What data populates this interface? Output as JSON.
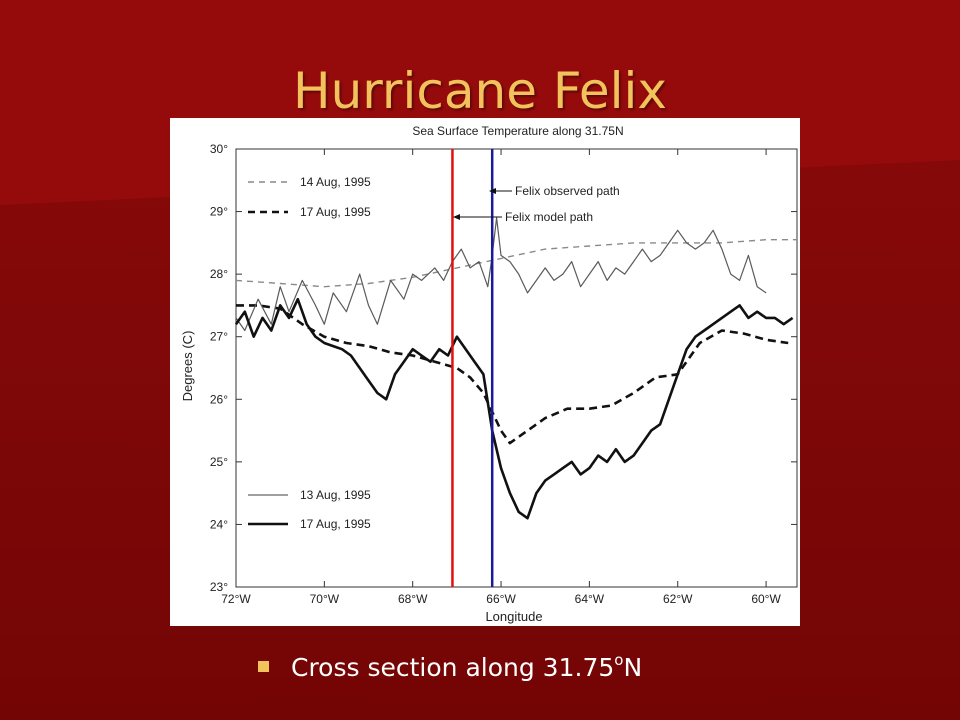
{
  "slide": {
    "title": "Hurricane Felix",
    "bullet": {
      "text_before": "Cross section along 31.75",
      "superscript": "o",
      "text_after": "N"
    }
  },
  "colors": {
    "background": "#830808",
    "title": "#f2c35c",
    "bullet_marker": "#f2c35c",
    "model_path_line": "#e01010",
    "observed_path_line": "#1a1a9a"
  },
  "chart_data": {
    "type": "line",
    "title": "Sea Surface Temperature along 31.75N",
    "xlabel": "Longitude",
    "ylabel": "Degrees (C)",
    "xlim": [
      -72,
      -59.3
    ],
    "ylim": [
      23,
      30
    ],
    "x_ticks": [
      -72,
      -70,
      -68,
      -66,
      -64,
      -62,
      -60
    ],
    "x_tick_labels": [
      "72°W",
      "70°W",
      "68°W",
      "66°W",
      "64°W",
      "62°W",
      "60°W"
    ],
    "y_ticks": [
      23,
      24,
      25,
      26,
      27,
      28,
      29,
      30
    ],
    "y_tick_labels": [
      "23°",
      "24°",
      "25°",
      "26°",
      "27°",
      "28°",
      "29°",
      "30°"
    ],
    "grid": false,
    "legend_top": [
      "14 Aug, 1995",
      "17 Aug, 1995"
    ],
    "legend_bottom": [
      "13 Aug, 1995",
      "17 Aug, 1995"
    ],
    "annotations": [
      "Felix observed path",
      "Felix model path"
    ],
    "vertical_lines": [
      {
        "label": "Felix model path",
        "x": -67.1,
        "color": "#e01010"
      },
      {
        "label": "Felix observed path",
        "x": -66.2,
        "color": "#1a1a9a"
      }
    ],
    "series": [
      {
        "name": "14 Aug, 1995",
        "style": "dashed-thin",
        "x": [
          -72,
          -71,
          -70,
          -69,
          -68,
          -67,
          -66,
          -65,
          -64,
          -63,
          -62,
          -61,
          -60,
          -59.3
        ],
        "values": [
          27.9,
          27.85,
          27.8,
          27.85,
          27.95,
          28.1,
          28.25,
          28.4,
          28.45,
          28.5,
          28.5,
          28.5,
          28.55,
          28.55
        ]
      },
      {
        "name": "17 Aug, 1995",
        "style": "dashed-thick",
        "x": [
          -72,
          -71.5,
          -71,
          -70.5,
          -70,
          -69.5,
          -69,
          -68.5,
          -68,
          -67.5,
          -67,
          -66.7,
          -66.4,
          -66.2,
          -66,
          -65.8,
          -65.5,
          -65,
          -64.5,
          -64,
          -63.5,
          -63,
          -62.5,
          -62,
          -61.5,
          -61,
          -60.5,
          -60,
          -59.5
        ],
        "values": [
          27.5,
          27.5,
          27.45,
          27.2,
          27.0,
          26.9,
          26.85,
          26.75,
          26.7,
          26.6,
          26.5,
          26.35,
          26.1,
          25.8,
          25.5,
          25.3,
          25.45,
          25.7,
          25.85,
          25.85,
          25.9,
          26.1,
          26.35,
          26.4,
          26.9,
          27.1,
          27.05,
          26.95,
          26.9
        ]
      },
      {
        "name": "13 Aug, 1995",
        "style": "solid-thin",
        "x": [
          -72,
          -71.8,
          -71.5,
          -71.2,
          -71,
          -70.8,
          -70.5,
          -70.2,
          -70,
          -69.8,
          -69.5,
          -69.2,
          -69,
          -68.8,
          -68.5,
          -68.2,
          -68,
          -67.8,
          -67.5,
          -67.3,
          -67.1,
          -66.9,
          -66.7,
          -66.5,
          -66.3,
          -66.2,
          -66.1,
          -66,
          -65.8,
          -65.6,
          -65.4,
          -65.2,
          -65,
          -64.8,
          -64.6,
          -64.4,
          -64.2,
          -64,
          -63.8,
          -63.6,
          -63.4,
          -63.2,
          -63,
          -62.8,
          -62.6,
          -62.4,
          -62.2,
          -62,
          -61.8,
          -61.6,
          -61.4,
          -61.2,
          -61,
          -60.8,
          -60.6,
          -60.4,
          -60.2,
          -60
        ],
        "values": [
          27.3,
          27.1,
          27.6,
          27.2,
          27.8,
          27.4,
          27.9,
          27.5,
          27.2,
          27.7,
          27.4,
          28.0,
          27.5,
          27.2,
          27.9,
          27.6,
          28.0,
          27.9,
          28.1,
          27.9,
          28.2,
          28.4,
          28.1,
          28.2,
          27.8,
          28.3,
          28.9,
          28.3,
          28.2,
          28.0,
          27.7,
          27.9,
          28.1,
          27.9,
          28.0,
          28.2,
          27.8,
          28.0,
          28.2,
          27.9,
          28.1,
          28.0,
          28.2,
          28.4,
          28.2,
          28.3,
          28.5,
          28.7,
          28.5,
          28.4,
          28.5,
          28.7,
          28.4,
          28.0,
          27.9,
          28.3,
          27.8,
          27.7
        ]
      },
      {
        "name": "17 Aug, 1995",
        "style": "solid-thick",
        "x": [
          -72,
          -71.8,
          -71.6,
          -71.4,
          -71.2,
          -71,
          -70.8,
          -70.6,
          -70.4,
          -70.2,
          -70,
          -69.8,
          -69.6,
          -69.4,
          -69.2,
          -69,
          -68.8,
          -68.6,
          -68.4,
          -68.2,
          -68,
          -67.8,
          -67.6,
          -67.4,
          -67.2,
          -67.0,
          -66.8,
          -66.6,
          -66.4,
          -66.2,
          -66.0,
          -65.8,
          -65.6,
          -65.4,
          -65.2,
          -65.0,
          -64.8,
          -64.6,
          -64.4,
          -64.2,
          -64.0,
          -63.8,
          -63.6,
          -63.4,
          -63.2,
          -63.0,
          -62.8,
          -62.6,
          -62.4,
          -62.2,
          -62.0,
          -61.8,
          -61.6,
          -61.4,
          -61.2,
          -61.0,
          -60.8,
          -60.6,
          -60.4,
          -60.2,
          -60.0,
          -59.8,
          -59.6,
          -59.4
        ],
        "values": [
          27.2,
          27.4,
          27.0,
          27.3,
          27.1,
          27.5,
          27.3,
          27.6,
          27.2,
          27.0,
          26.9,
          26.85,
          26.8,
          26.7,
          26.5,
          26.3,
          26.1,
          26.0,
          26.4,
          26.6,
          26.8,
          26.7,
          26.6,
          26.8,
          26.7,
          27.0,
          26.8,
          26.6,
          26.4,
          25.5,
          24.9,
          24.5,
          24.2,
          24.1,
          24.5,
          24.7,
          24.8,
          24.9,
          25.0,
          24.8,
          24.9,
          25.1,
          25.0,
          25.2,
          25.0,
          25.1,
          25.3,
          25.5,
          25.6,
          26.0,
          26.4,
          26.8,
          27.0,
          27.1,
          27.2,
          27.3,
          27.4,
          27.5,
          27.3,
          27.4,
          27.3,
          27.3,
          27.2,
          27.3
        ]
      }
    ]
  }
}
